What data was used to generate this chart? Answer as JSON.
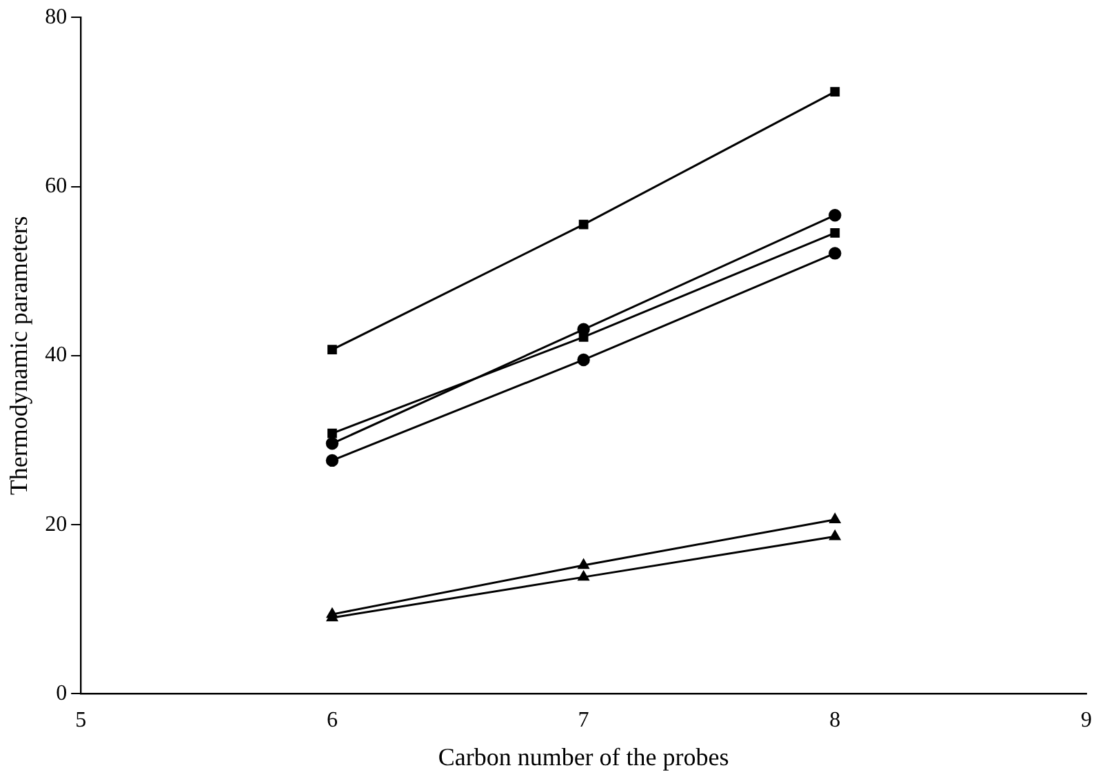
{
  "chart_data": {
    "type": "line",
    "xlabel": "Carbon number of the probes",
    "ylabel": "Thermodynamic parameters",
    "xlim": [
      5,
      9
    ],
    "xticks": [
      5,
      6,
      7,
      8,
      9
    ],
    "ylim": [
      0,
      80
    ],
    "yticks": [
      0,
      20,
      40,
      60,
      80
    ],
    "grid": false,
    "legend": false,
    "line_style": "solid",
    "series": [
      {
        "x": [
          6,
          7,
          8
        ],
        "values": [
          40.7,
          55.5,
          71.2
        ],
        "color": "#000000",
        "marker": "square"
      },
      {
        "x": [
          6,
          7,
          8
        ],
        "values": [
          29.6,
          43.1,
          56.6
        ],
        "color": "#000000",
        "marker": "circle"
      },
      {
        "x": [
          6,
          7,
          8
        ],
        "values": [
          30.8,
          42.2,
          54.5
        ],
        "color": "#000000",
        "marker": "square"
      },
      {
        "x": [
          6,
          7,
          8
        ],
        "values": [
          27.6,
          39.5,
          52.1
        ],
        "color": "#000000",
        "marker": "circle"
      },
      {
        "x": [
          6,
          7,
          8
        ],
        "values": [
          9.4,
          15.2,
          20.6
        ],
        "color": "#000000",
        "marker": "triangle"
      },
      {
        "x": [
          6,
          7,
          8
        ],
        "values": [
          9.0,
          13.8,
          18.6
        ],
        "color": "#000000",
        "marker": "triangle"
      }
    ]
  }
}
